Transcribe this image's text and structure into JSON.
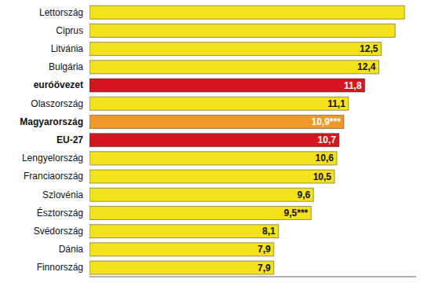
{
  "chart_data": {
    "type": "bar",
    "orientation": "horizontal",
    "categories": [
      "Lettország",
      "Ciprus",
      "Litvánia",
      "Bulgária",
      "euróövezet",
      "Olaszország",
      "Magyarország",
      "EU-27",
      "Lengyelország",
      "Franciaország",
      "Szlovénia",
      "Észtország",
      "Svédország",
      "Dánia",
      "Finnország"
    ],
    "values": [
      13.5,
      13.1,
      12.5,
      12.4,
      11.8,
      11.1,
      10.9,
      10.7,
      10.6,
      10.5,
      9.6,
      9.5,
      8.1,
      7.9,
      7.9
    ],
    "value_labels": [
      null,
      null,
      "12,5",
      "12,4",
      "11,8",
      "11,1",
      "10,9***",
      "10,7",
      "10,6",
      "10,5",
      "9,6",
      "9,5***",
      "8,1",
      "7,9",
      "7,9"
    ],
    "data_labels": true,
    "color": "#f3e21c",
    "colors": [
      "#f3e21c",
      "#f3e21c",
      "#f3e21c",
      "#f3e21c",
      "#d4161e",
      "#f3e21c",
      "#ee9a2a",
      "#d4161e",
      "#f3e21c",
      "#f3e21c",
      "#f3e21c",
      "#f3e21c",
      "#f3e21c",
      "#f3e21c",
      "#f3e21c"
    ],
    "xlim": [
      0,
      14
    ],
    "xticks": [],
    "tick_labels": false
  }
}
